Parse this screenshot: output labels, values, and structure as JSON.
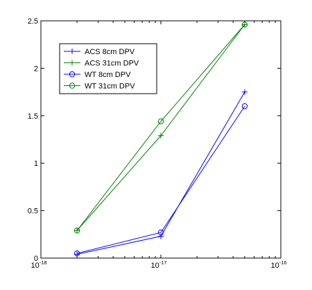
{
  "chart_data": {
    "type": "line",
    "title": "",
    "xlabel": "",
    "ylabel": "",
    "xscale": "log",
    "xlim": [
      1e-18,
      1e-16
    ],
    "ylim": [
      0,
      2.5
    ],
    "grid": false,
    "legend_position": "top-left",
    "x_ticks": [
      {
        "value": 1e-18,
        "base": "10",
        "exp": "-18"
      },
      {
        "value": 1e-17,
        "base": "10",
        "exp": "-17"
      },
      {
        "value": 1e-16,
        "base": "10",
        "exp": "-16"
      }
    ],
    "y_ticks": [
      {
        "value": 0,
        "label": "0"
      },
      {
        "value": 0.5,
        "label": "0.5"
      },
      {
        "value": 1,
        "label": "1"
      },
      {
        "value": 1.5,
        "label": "1.5"
      },
      {
        "value": 2,
        "label": "2"
      },
      {
        "value": 2.5,
        "label": "2.5"
      }
    ],
    "x": [
      2e-18,
      1e-17,
      5e-17
    ],
    "series": [
      {
        "name": "ACS 8cm DPV",
        "color": "#0000ff",
        "marker": "plus",
        "values": [
          0.04,
          0.23,
          1.75
        ]
      },
      {
        "name": "ACS 31cm DPV",
        "color": "#008000",
        "marker": "plus",
        "values": [
          0.29,
          1.29,
          2.46
        ]
      },
      {
        "name": "WT 8cm DPV",
        "color": "#0000ff",
        "marker": "circle",
        "values": [
          0.05,
          0.27,
          1.6
        ]
      },
      {
        "name": "WT 31cm DPV",
        "color": "#008000",
        "marker": "circle",
        "values": [
          0.29,
          1.44,
          2.46
        ]
      }
    ]
  }
}
